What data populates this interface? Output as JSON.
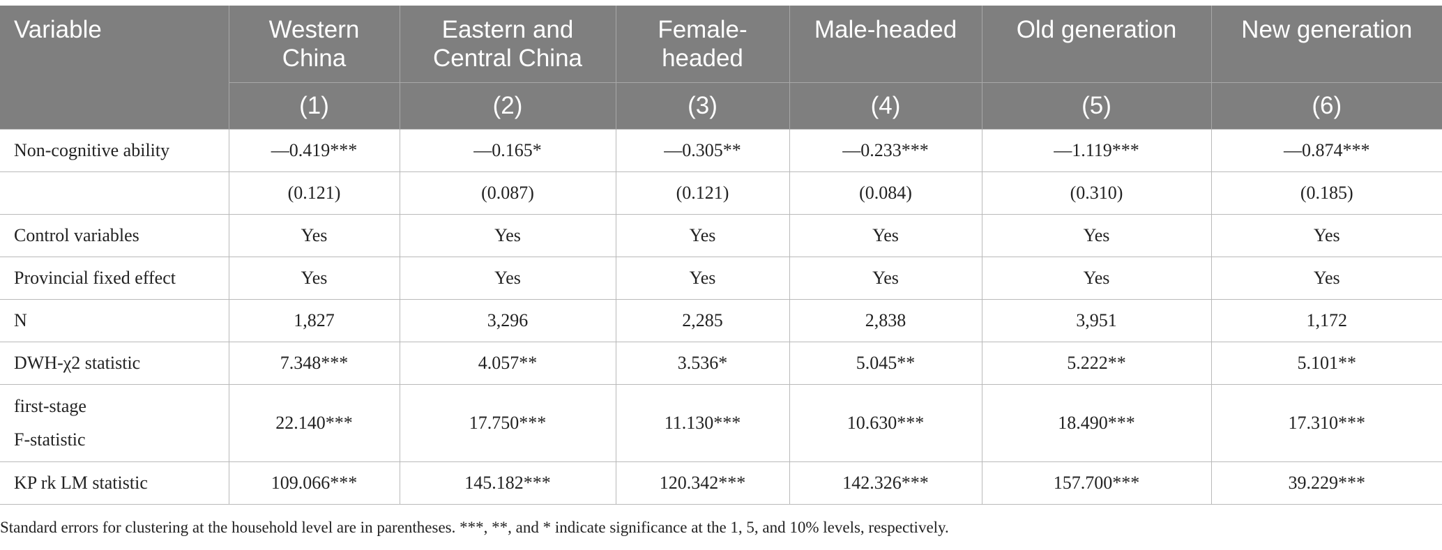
{
  "table": {
    "variable_header": "Variable",
    "columns": [
      {
        "label": "Western\nChina",
        "number": "(1)"
      },
      {
        "label": "Eastern and\nCentral China",
        "number": "(2)"
      },
      {
        "label": "Female-\nheaded",
        "number": "(3)"
      },
      {
        "label": "Male-headed",
        "number": "(4)"
      },
      {
        "label": "Old generation",
        "number": "(5)"
      },
      {
        "label": "New generation",
        "number": "(6)"
      }
    ],
    "rows": [
      {
        "label": "Non-cognitive ability",
        "values": [
          "—0.419***",
          "—0.165*",
          "—0.305**",
          "—0.233***",
          "—1.119***",
          "—0.874***"
        ]
      },
      {
        "label": "",
        "values": [
          "(0.121)",
          "(0.087)",
          "(0.121)",
          "(0.084)",
          "(0.310)",
          "(0.185)"
        ]
      },
      {
        "label": "Control variables",
        "values": [
          "Yes",
          "Yes",
          "Yes",
          "Yes",
          "Yes",
          "Yes"
        ]
      },
      {
        "label": "Provincial fixed effect",
        "values": [
          "Yes",
          "Yes",
          "Yes",
          "Yes",
          "Yes",
          "Yes"
        ]
      },
      {
        "label": "N",
        "values": [
          "1,827",
          "3,296",
          "2,285",
          "2,838",
          "3,951",
          "1,172"
        ]
      },
      {
        "label": "DWH-χ2 statistic",
        "values": [
          "7.348***",
          "4.057**",
          "3.536*",
          "5.045**",
          "5.222**",
          "5.101**"
        ]
      },
      {
        "label": "first-stage\nF-statistic",
        "values": [
          "22.140***",
          "17.750***",
          "11.130***",
          "10.630***",
          "18.490***",
          "17.310***"
        ]
      },
      {
        "label": "KP rk LM statistic",
        "values": [
          "109.066***",
          "145.182***",
          "120.342***",
          "142.326***",
          "157.700***",
          "39.229***"
        ]
      }
    ]
  },
  "note": "Standard errors for clustering at the household level are in parentheses. ***, **, and * indicate significance at the 1, 5, and 10% levels, respectively."
}
